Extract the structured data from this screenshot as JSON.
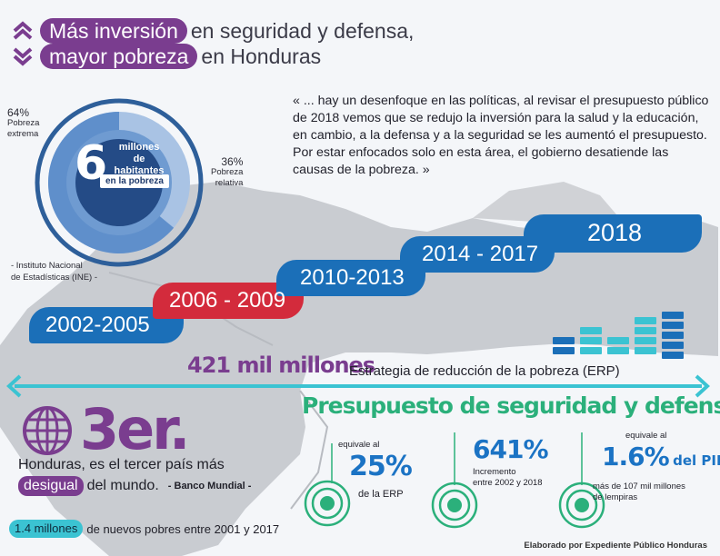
{
  "header": {
    "line1_pill": "Más inversión",
    "line1_rest": "en seguridad y defensa,",
    "line2_pill": "mayor pobreza",
    "line2_rest": "en Honduras",
    "icons": [
      "chevron-up-icon",
      "chevron-down-icon"
    ]
  },
  "donut": {
    "big_number": "6",
    "line1": "millones",
    "line2": "de habitantes",
    "pill": "en la pobreza",
    "extreme_pct": "64%",
    "extreme_label_1": "Pobreza",
    "extreme_label_2": "extrema",
    "relative_pct": "36%",
    "relative_label_1": "Pobreza",
    "relative_label_2": "relativa",
    "source_line1": "- Instituto Nacional",
    "source_line2": "de Estadísticas (INE) -",
    "extreme_share": 0.64,
    "relative_share": 0.36
  },
  "quote": {
    "text": "« ... hay un desenfoque en las políticas, al revisar el presupuesto público de 2018 vemos que se redujo la inversión para la salud y la educación, en cambio, a la defensa y a la seguridad se les aumentó el presupuesto. Por estar enfocados solo en esta área, el gobierno desatiende las causas de la pobreza. »"
  },
  "timeline": {
    "periods": [
      "2002-2005",
      "2006 - 2009",
      "2010-2013",
      "2014 - 2017",
      "2018"
    ]
  },
  "erp": {
    "amount": "421 mil millones",
    "label": "Estrategia de reducción de la pobreza (ERP)"
  },
  "ranking": {
    "place": "3er.",
    "line1": "Honduras, es el tercer país más",
    "pill": "desigual",
    "line2_rest": "del mundo.",
    "source": "- Banco Mundial -",
    "new_poor_pill": "1.4 millones",
    "new_poor_rest": "de nuevos pobres entre 2001 y 2017"
  },
  "budget": {
    "title": "Presupuesto de seguridad y defensa",
    "item1_pre": "equivale al",
    "item1_value": "25%",
    "item1_post": "de la ERP",
    "item2_value": "641%",
    "item2_line1": "Incremento",
    "item2_line2": "entre 2002 y 2018",
    "item3_pre": "equivale al",
    "item3_value": "1.6%",
    "item3_suffix": "del PIB",
    "item3_line1": "más de 107 mil millones",
    "item3_line2": "de lempiras"
  },
  "credit": "Elaborado por Expediente Público Honduras",
  "colors": {
    "purple": "#7a3d8f",
    "blue": "#1b6fb8",
    "red": "#d32b3c",
    "teal": "#3bc3d2",
    "green": "#2bb07b"
  }
}
